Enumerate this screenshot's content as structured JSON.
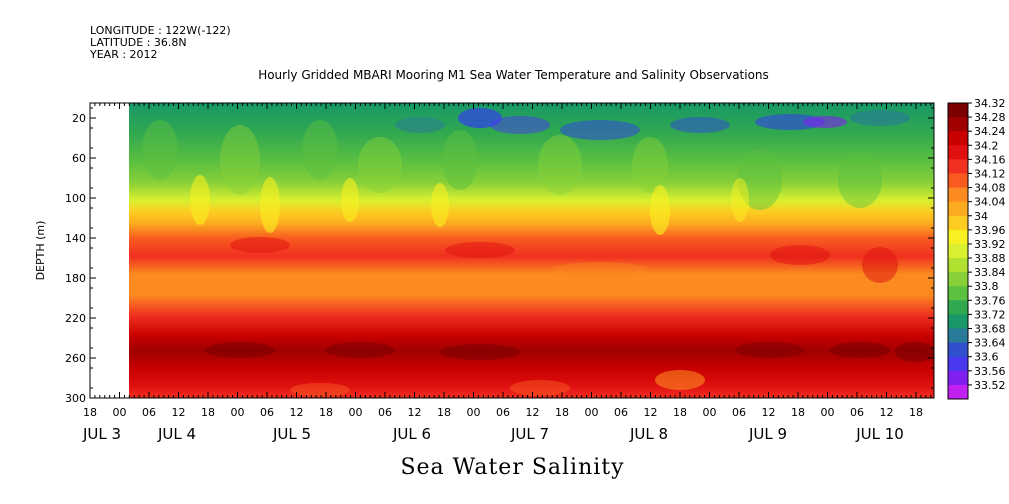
{
  "header": {
    "longitude": "LONGITUDE : 122W(-122)",
    "latitude": "LATITUDE : 36.8N",
    "year": "YEAR : 2012"
  },
  "title": "Hourly Gridded MBARI Mooring M1 Sea Water Temperature and Salinity Observations",
  "variable_title": "Sea Water Salinity",
  "colorbar": {
    "levels": [
      "34.32",
      "34.28",
      "34.24",
      "34.2",
      "34.16",
      "34.12",
      "34.08",
      "34.04",
      "34",
      "33.96",
      "33.92",
      "33.88",
      "33.84",
      "33.8",
      "33.76",
      "33.72",
      "33.68",
      "33.64",
      "33.6",
      "33.56",
      "33.52"
    ],
    "colors": [
      "#7a0000",
      "#a00000",
      "#c80000",
      "#e01010",
      "#f03020",
      "#f85a20",
      "#fb8a20",
      "#fcaa20",
      "#fccc20",
      "#f8f020",
      "#d8f030",
      "#b0e030",
      "#88d038",
      "#5cc040",
      "#30a850",
      "#189868",
      "#2a7a9a",
      "#3050d0",
      "#4838f0",
      "#8020f0",
      "#c020f0"
    ]
  },
  "chart_data": {
    "type": "heatmap",
    "title": "Hourly Gridded MBARI Mooring M1 Sea Water Temperature and Salinity Observations",
    "variable": "Sea Water Salinity",
    "xlabel": "",
    "ylabel": "DEPTH (m)",
    "ylim": [
      300,
      5
    ],
    "y_ticks": [
      20,
      60,
      100,
      140,
      180,
      220,
      260,
      300
    ],
    "x_hour_ticks": [
      "18",
      "00",
      "06",
      "12",
      "18",
      "00",
      "06",
      "12",
      "18",
      "00",
      "06",
      "12",
      "18",
      "00",
      "06",
      "12",
      "18",
      "00",
      "06",
      "12",
      "18",
      "00",
      "06",
      "12",
      "18",
      "00",
      "06",
      "12",
      "18",
      "00",
      "06",
      "12",
      "18"
    ],
    "x_day_ticks": [
      "JUL  3",
      "JUL  4",
      "JUL  5",
      "JUL  6",
      "JUL  7",
      "JUL  8",
      "JUL  9",
      "JUL 10"
    ],
    "x_range": [
      "2012-07-03 18:00",
      "2012-07-10 21:00"
    ],
    "data_start": "2012-07-04 00:00",
    "depth_profile": [
      {
        "depth": 5,
        "salinity": 33.72
      },
      {
        "depth": 20,
        "salinity": 33.74
      },
      {
        "depth": 40,
        "salinity": 33.78
      },
      {
        "depth": 60,
        "salinity": 33.82
      },
      {
        "depth": 80,
        "salinity": 33.9
      },
      {
        "depth": 100,
        "salinity": 33.98
      },
      {
        "depth": 120,
        "salinity": 34.04
      },
      {
        "depth": 140,
        "salinity": 34.14
      },
      {
        "depth": 160,
        "salinity": 34.16
      },
      {
        "depth": 180,
        "salinity": 34.12
      },
      {
        "depth": 200,
        "salinity": 34.13
      },
      {
        "depth": 220,
        "salinity": 34.2
      },
      {
        "depth": 240,
        "salinity": 34.26
      },
      {
        "depth": 260,
        "salinity": 34.3
      },
      {
        "depth": 280,
        "salinity": 34.24
      },
      {
        "depth": 300,
        "salinity": 34.2
      }
    ],
    "colorbar_range": [
      33.52,
      34.32
    ],
    "grid": false,
    "legend": "right"
  }
}
